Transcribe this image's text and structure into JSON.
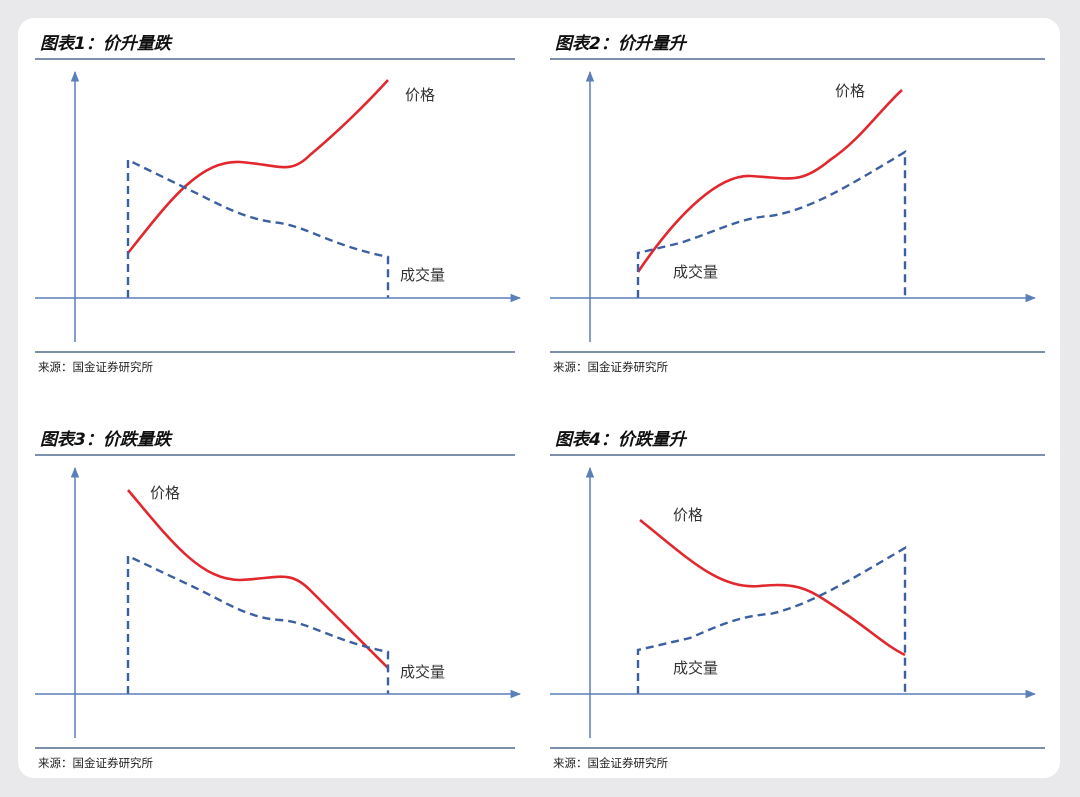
{
  "figures": [
    {
      "title": "图表1：价升量跌",
      "price_label": "价格",
      "volume_label": "成交量",
      "source": "来源：国金证券研究所"
    },
    {
      "title": "图表2：价升量升",
      "price_label": "价格",
      "volume_label": "成交量",
      "source": "来源：国金证券研究所"
    },
    {
      "title": "图表3：价跌量跌",
      "price_label": "价格",
      "volume_label": "成交量",
      "source": "来源：国金证券研究所"
    },
    {
      "title": "图表4：价跌量升",
      "price_label": "价格",
      "volume_label": "成交量",
      "source": "来源：国金证券研究所"
    }
  ]
}
